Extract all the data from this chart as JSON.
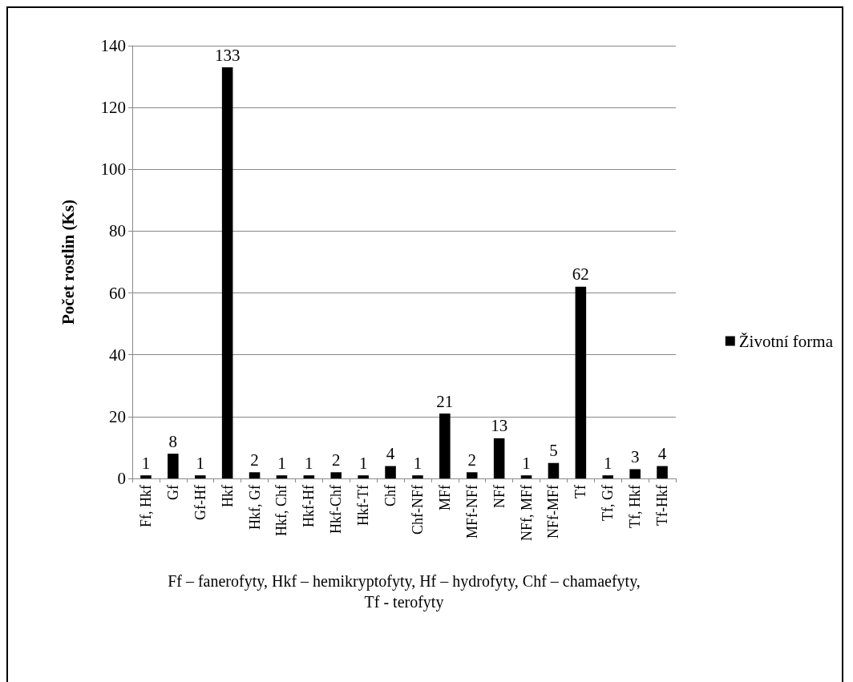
{
  "chart_data": {
    "type": "bar",
    "categories": [
      "Ff, Hkf",
      "Gf",
      "Gf-Hf",
      "Hkf",
      "Hkf, Gf",
      "Hkf, Chf",
      "Hkf-Hf",
      "Hkf-Chf",
      "Hkf-Tf",
      "Chf",
      "Chf-NFf",
      "MFf",
      "MFf-NFf",
      "NFf",
      "NFf, MFf",
      "NFf-MFf",
      "Tf",
      "Tf, Gf",
      "Tf, Hkf",
      "Tf-Hkf"
    ],
    "series": [
      {
        "name": "Životní forma",
        "color": "#000000",
        "values": [
          1,
          8,
          1,
          133,
          2,
          1,
          1,
          2,
          1,
          4,
          1,
          21,
          2,
          13,
          1,
          5,
          62,
          1,
          3,
          4
        ]
      }
    ],
    "ylabel": "Počet rostlin (Ks)",
    "xlabel": "Ff – fanerofyty, Hkf – hemikryptofyty, Hf – hydrofyty, Chf – chamaefyty,\nTf - terofyty",
    "ylim": [
      0,
      140
    ],
    "yticks": [
      0,
      20,
      40,
      60,
      80,
      100,
      120,
      140
    ],
    "grid": "y",
    "legend": "right",
    "data_labels": true
  }
}
